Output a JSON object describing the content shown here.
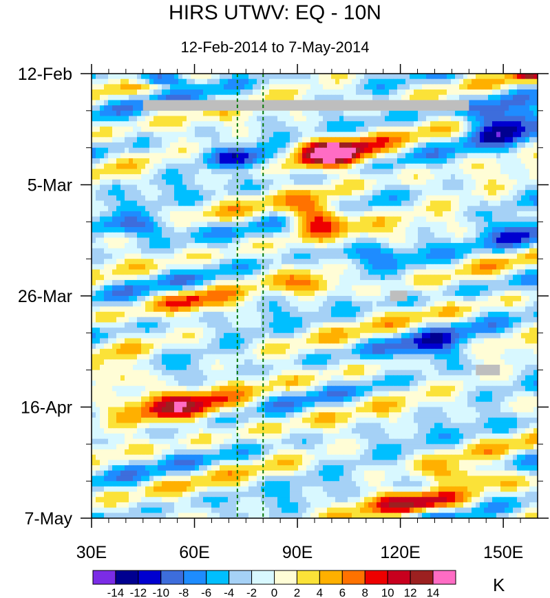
{
  "chart_data": {
    "type": "heatmap",
    "title": "HIRS UTWV: EQ - 10N",
    "subtitle": "12-Feb-2014 to 7-May-2014",
    "xlabel": "",
    "ylabel": "",
    "x_range": [
      30,
      160
    ],
    "y_range_days": [
      0,
      84
    ],
    "x_ticks": [
      {
        "value": 30,
        "label": "30E"
      },
      {
        "value": 60,
        "label": "60E"
      },
      {
        "value": 90,
        "label": "90E"
      },
      {
        "value": 120,
        "label": "120E"
      },
      {
        "value": 150,
        "label": "150E"
      }
    ],
    "y_ticks": [
      {
        "day": 0,
        "label": "12-Feb"
      },
      {
        "day": 21,
        "label": "5-Mar"
      },
      {
        "day": 42,
        "label": "26-Mar"
      },
      {
        "day": 63,
        "label": "16-Apr"
      },
      {
        "day": 84,
        "label": "7-May"
      }
    ],
    "reference_lines_lon": [
      72.5,
      80
    ],
    "missing_data_boxes": [
      {
        "lon": [
          45,
          140
        ],
        "day": [
          5,
          7
        ]
      },
      {
        "lon": [
          117,
          122
        ],
        "day": [
          41,
          43
        ]
      },
      {
        "lon": [
          142,
          149
        ],
        "day": [
          55,
          57
        ]
      }
    ],
    "colorbar": {
      "units": "K",
      "levels": [
        -14,
        -12,
        -10,
        -8,
        -6,
        -4,
        -2,
        0,
        2,
        4,
        6,
        8,
        10,
        12,
        14
      ],
      "colors": [
        "#7b2ce6",
        "#000090",
        "#0000d0",
        "#3d6ddc",
        "#1e8cff",
        "#00bfff",
        "#a5d1f6",
        "#d8f8ff",
        "#fffdd6",
        "#fbe238",
        "#ffb000",
        "#ff7200",
        "#ee0000",
        "#c8001e",
        "#9c2020",
        "#ff6cc4"
      ]
    },
    "features": [
      {
        "lon": 100,
        "day": 15,
        "value": 15,
        "spread_lon": 12,
        "spread_day": 3
      },
      {
        "lon": 96,
        "day": 27,
        "value": 14,
        "spread_lon": 9,
        "spread_day": 3
      },
      {
        "lon": 55,
        "day": 63,
        "value": 10,
        "spread_lon": 18,
        "spread_day": 3
      },
      {
        "lon": 125,
        "day": 81,
        "value": 10,
        "spread_lon": 15,
        "spread_day": 2
      },
      {
        "lon": 140,
        "day": 76,
        "value": 8,
        "spread_lon": 12,
        "spread_day": 2
      },
      {
        "lon": 38,
        "day": 57,
        "value": 8,
        "spread_lon": 8,
        "spread_day": 2
      },
      {
        "lon": 95,
        "day": 40,
        "value": 8,
        "spread_lon": 8,
        "spread_day": 2
      },
      {
        "lon": 60,
        "day": 43,
        "value": 6,
        "spread_lon": 10,
        "spread_day": 2
      },
      {
        "lon": 150,
        "day": 9,
        "value": -12,
        "spread_lon": 10,
        "spread_day": 4
      },
      {
        "lon": 50,
        "day": 1,
        "value": -12,
        "spread_lon": 8,
        "spread_day": 1
      },
      {
        "lon": 45,
        "day": 29,
        "value": -8,
        "spread_lon": 15,
        "spread_day": 2
      },
      {
        "lon": 75,
        "day": 16,
        "value": -8,
        "spread_lon": 12,
        "spread_day": 2
      },
      {
        "lon": 155,
        "day": 30,
        "value": -8,
        "spread_lon": 8,
        "spread_day": 3
      },
      {
        "lon": 130,
        "day": 52,
        "value": -7,
        "spread_lon": 12,
        "spread_day": 3
      },
      {
        "lon": 110,
        "day": 34,
        "value": -6,
        "spread_lon": 12,
        "spread_day": 2
      },
      {
        "lon": 157,
        "day": 0,
        "value": 10,
        "spread_lon": 4,
        "spread_day": 1
      }
    ]
  }
}
